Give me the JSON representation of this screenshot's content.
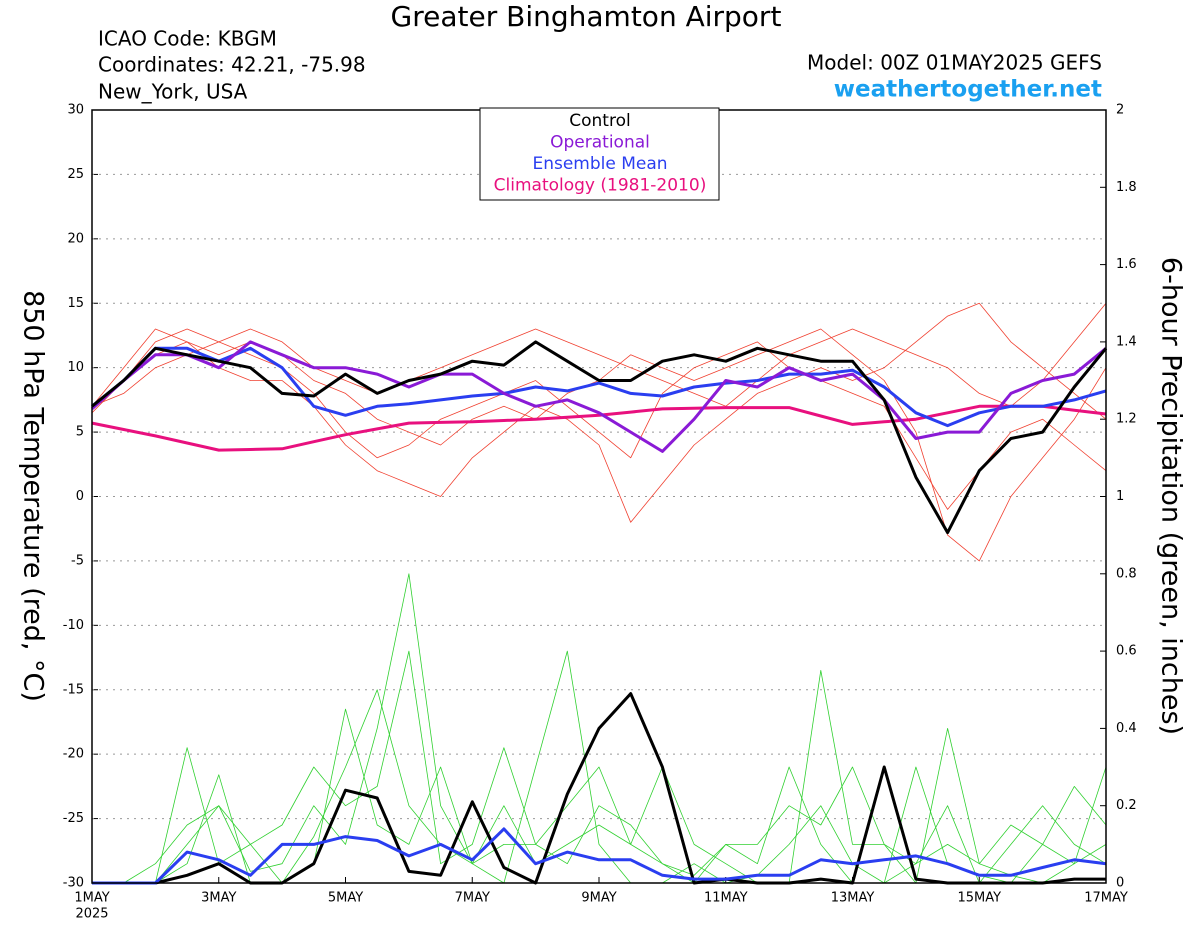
{
  "chart_data": {
    "type": "line",
    "title": "Greater Binghamton Airport",
    "info_left": [
      "ICAO Code: KBGM",
      "Coordinates: 42.21, -75.98",
      "New_York, USA"
    ],
    "model": "Model: 00Z 01MAY2025 GEFS",
    "site": "weathertogether.net",
    "y_label": "850 hPa Temperature (red, °C)",
    "y2_label": "6-hour Precipitation (green, inches)",
    "year": "2025",
    "x": [
      0,
      0.5,
      1,
      1.5,
      2,
      2.5,
      3,
      3.5,
      4,
      4.5,
      5,
      5.5,
      6,
      6.5,
      7,
      7.5,
      8,
      8.5,
      9,
      9.5,
      10,
      10.5,
      11,
      11.5,
      12,
      12.5,
      13,
      13.5,
      14,
      14.5,
      15,
      15.5,
      16
    ],
    "xlim": [
      0,
      16
    ],
    "xticks": [
      {
        "value": 0,
        "label": "1MAY"
      },
      {
        "value": 2,
        "label": "3MAY"
      },
      {
        "value": 4,
        "label": "5MAY"
      },
      {
        "value": 6,
        "label": "7MAY"
      },
      {
        "value": 8,
        "label": "9MAY"
      },
      {
        "value": 10,
        "label": "11MAY"
      },
      {
        "value": 12,
        "label": "13MAY"
      },
      {
        "value": 14,
        "label": "15MAY"
      },
      {
        "value": 16,
        "label": "17MAY"
      }
    ],
    "ylim": [
      -30,
      30
    ],
    "yticks": [
      -30,
      -25,
      -20,
      -15,
      -10,
      -5,
      0,
      5,
      10,
      15,
      20,
      25,
      30
    ],
    "y2lim": [
      0,
      2
    ],
    "y2ticks": [
      0,
      0.2,
      0.4,
      0.6,
      0.8,
      1,
      1.2,
      1.4,
      1.6,
      1.8,
      2
    ],
    "grid": true,
    "series": [
      {
        "name": "Control",
        "color": "#000000",
        "values": [
          7,
          9,
          11.5,
          11,
          10.5,
          10,
          8,
          7.8,
          9.5,
          8,
          9,
          9.5,
          10.5,
          10.2,
          12,
          10.5,
          9,
          9,
          10.5,
          11,
          10.5,
          11.5,
          11,
          10.5,
          10.5,
          7.5,
          1.5,
          -2.8,
          2,
          4.5,
          5,
          8.5,
          11.5
        ]
      },
      {
        "name": "Operational",
        "color": "#8a1ad6",
        "values": [
          6.8,
          9,
          11,
          11,
          10,
          12,
          11,
          10,
          10,
          9.5,
          8.5,
          9.5,
          9.5,
          8,
          7,
          7.5,
          6.5,
          5,
          3.5,
          6,
          9,
          8.5,
          10,
          9,
          9.5,
          7.5,
          4.5,
          5,
          5,
          8,
          9,
          9.5,
          11.5
        ]
      },
      {
        "name": "Ensemble Mean",
        "color": "#2a3ef0",
        "values": [
          7,
          9,
          11.5,
          11.5,
          10.5,
          11.5,
          10,
          7,
          6.3,
          7,
          7.2,
          7.5,
          7.8,
          8,
          8.5,
          8.2,
          8.8,
          8,
          7.8,
          8.5,
          8.8,
          9,
          9.5,
          9.5,
          9.8,
          8.5,
          6.5,
          5.5,
          6.5,
          7,
          7,
          7.5,
          8.2
        ]
      },
      {
        "name": "Climatology (1981-2010)",
        "color": "#e8107e",
        "values": [
          5.7,
          5.2,
          4.7,
          4.15,
          3.6,
          3.65,
          3.7,
          4.25,
          4.8,
          5.25,
          5.7,
          5.75,
          5.8,
          5.9,
          6.0,
          6.15,
          6.3,
          6.55,
          6.8,
          6.85,
          6.9,
          6.9,
          6.9,
          6.25,
          5.6,
          5.8,
          6.0,
          6.5,
          7.0,
          7.0,
          7.0,
          6.7,
          6.4
        ]
      }
    ],
    "precipitation": [
      {
        "color": "#000000",
        "axis": "y2",
        "values": [
          0,
          0,
          0,
          0.02,
          0.05,
          0,
          0,
          0.05,
          0.24,
          0.22,
          0.03,
          0.02,
          0.21,
          0.04,
          0,
          0.23,
          0.4,
          0.49,
          0.3,
          0,
          0.01,
          0,
          0,
          0.01,
          0,
          0.3,
          0.01,
          0,
          0,
          0,
          0,
          0.01,
          0.01
        ]
      },
      {
        "color": "#2a3ef0",
        "axis": "y2",
        "values": [
          0,
          0,
          0,
          0.08,
          0.06,
          0.02,
          0.1,
          0.1,
          0.12,
          0.11,
          0.07,
          0.1,
          0.06,
          0.14,
          0.05,
          0.08,
          0.06,
          0.06,
          0.02,
          0.01,
          0.01,
          0.02,
          0.02,
          0.06,
          0.05,
          0.06,
          0.07,
          0.05,
          0.02,
          0.02,
          0.04,
          0.06,
          0.05
        ]
      }
    ],
    "temperature_members": [
      {
        "color": "#f04030",
        "values": [
          7,
          9,
          12,
          13,
          12,
          11,
          10,
          8,
          5,
          3,
          4,
          6,
          7,
          8,
          9,
          7,
          5,
          3,
          8,
          10,
          11,
          12,
          10,
          9,
          8,
          7,
          3,
          -1,
          2,
          5,
          6,
          4,
          2
        ]
      },
      {
        "color": "#f04030",
        "values": [
          7,
          10,
          13,
          12,
          11,
          12,
          11,
          9,
          8,
          6,
          5,
          4,
          6,
          7,
          6,
          8,
          9,
          11,
          10,
          9,
          10,
          11,
          12,
          13,
          11,
          9,
          5,
          -3,
          -5,
          0,
          3,
          6,
          10
        ]
      },
      {
        "color": "#f04030",
        "values": [
          6.5,
          9,
          11,
          12,
          10,
          9,
          9,
          7,
          4,
          2,
          1,
          0,
          3,
          5,
          7,
          6,
          4,
          -2,
          1,
          4,
          6,
          8,
          9,
          10,
          9,
          10,
          12,
          14,
          15,
          12,
          10,
          8,
          6
        ]
      },
      {
        "color": "#f04030",
        "values": [
          7,
          8,
          10,
          11,
          12,
          13,
          12,
          10,
          9,
          8,
          9,
          10,
          11,
          12,
          13,
          12,
          11,
          10,
          9,
          8,
          7,
          9,
          11,
          12,
          13,
          12,
          11,
          10,
          8,
          7,
          9,
          12,
          15
        ]
      }
    ],
    "precipitation_members": [
      {
        "color": "#30d030",
        "axis": "y2",
        "values": [
          0,
          0,
          0,
          0.35,
          0.05,
          0.1,
          0,
          0.12,
          0.3,
          0.5,
          0.2,
          0.1,
          0.05,
          0,
          0.3,
          0.6,
          0.1,
          0,
          0,
          0.05,
          0,
          0.02,
          0.1,
          0.2,
          0.05,
          0,
          0.3,
          0.05,
          0.02,
          0,
          0.1,
          0.05,
          0.1
        ]
      },
      {
        "color": "#30d030",
        "axis": "y2",
        "values": [
          0,
          0,
          0,
          0.1,
          0.2,
          0.03,
          0.05,
          0.2,
          0.1,
          0.4,
          0.8,
          0.2,
          0.05,
          0.1,
          0.1,
          0.2,
          0.3,
          0.1,
          0.05,
          0,
          0.1,
          0.05,
          0.3,
          0.1,
          0,
          0,
          0.05,
          0.2,
          0,
          0.1,
          0.2,
          0.1,
          0.05
        ]
      },
      {
        "color": "#30d030",
        "axis": "y2",
        "values": [
          0,
          0,
          0,
          0.05,
          0.28,
          0,
          0,
          0.05,
          0.45,
          0.15,
          0.1,
          0.3,
          0.05,
          0.2,
          0.05,
          0.1,
          0.15,
          0.1,
          0.3,
          0.1,
          0.05,
          0,
          0,
          0.55,
          0.1,
          0.1,
          0,
          0.4,
          0.05,
          0.02,
          0,
          0.05,
          0.3
        ]
      },
      {
        "color": "#30d030",
        "axis": "y2",
        "values": [
          0,
          0,
          0.05,
          0.15,
          0.2,
          0.1,
          0.15,
          0.3,
          0.2,
          0.25,
          0.6,
          0.05,
          0.1,
          0.35,
          0.1,
          0.05,
          0.2,
          0.15,
          0.05,
          0.02,
          0.1,
          0.1,
          0.2,
          0.15,
          0.3,
          0.1,
          0.05,
          0.1,
          0.05,
          0.15,
          0.1,
          0.25,
          0.15
        ]
      }
    ]
  }
}
